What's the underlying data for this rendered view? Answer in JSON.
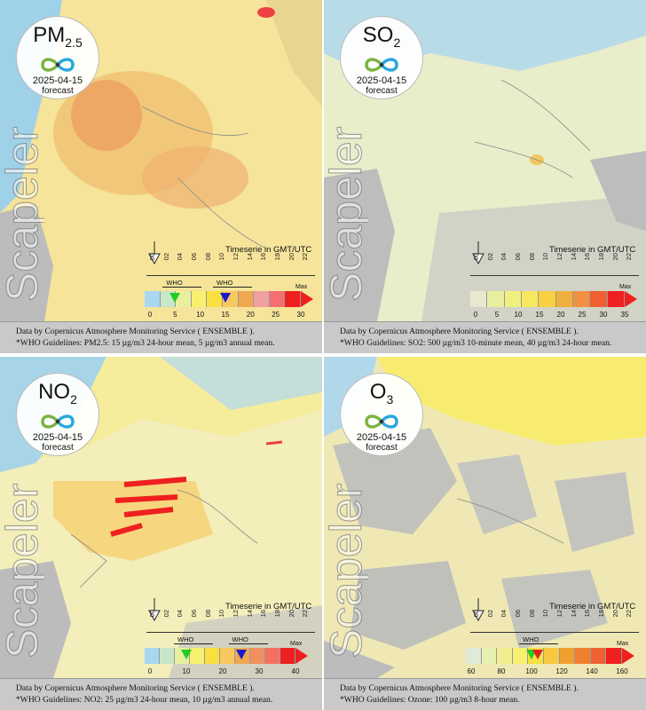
{
  "panels": [
    {
      "id": "pm25",
      "pollutant_main": "PM",
      "pollutant_sub": "2.5",
      "date": "2025-04-15",
      "forecast_label": "forecast",
      "brand": "Scapeler",
      "timeserie_label": "Timeserie in GMT/UTC",
      "hours": [
        "00",
        "02",
        "04",
        "06",
        "08",
        "10",
        "12",
        "14",
        "16",
        "18",
        "20",
        "22"
      ],
      "scale_ticks": [
        "0",
        "5",
        "10",
        "15",
        "20",
        "25",
        "30"
      ],
      "scale_max": "Max",
      "who_labels": [
        "WHO",
        "WHO"
      ],
      "who_marker_values": [
        5,
        15
      ],
      "who_marker_colors": [
        "#22cc22",
        "#1a1acc"
      ],
      "scale_colors": [
        "#a8d8f0",
        "#c8e6c8",
        "#e8f0a0",
        "#f8f070",
        "#f8e040",
        "#f8c860",
        "#f0a850",
        "#f0a0a0",
        "#f47070",
        "#ee2020"
      ],
      "footer_line1": "Data by Copernicus Atmosphere Monitoring Service ( ENSEMBLE ).",
      "footer_line2": "*WHO Guidelines: PM2.5: 15 µg/m3 24-hour mean, 5 µg/m3 annual mean."
    },
    {
      "id": "so2",
      "pollutant_main": "SO",
      "pollutant_sub": "2",
      "date": "2025-04-15",
      "forecast_label": "forecast",
      "brand": "Scapeler",
      "timeserie_label": "Timeserie in GMT/UTC",
      "hours": [
        "00",
        "02",
        "04",
        "06",
        "08",
        "10",
        "12",
        "14",
        "16",
        "18",
        "20",
        "22"
      ],
      "scale_ticks": [
        "0",
        "5",
        "10",
        "15",
        "20",
        "25",
        "30",
        "35"
      ],
      "scale_max": "Max",
      "who_labels": [],
      "who_marker_values": [],
      "who_marker_colors": [],
      "scale_colors": [
        "#e8e8d0",
        "#e8f0a0",
        "#f0f080",
        "#f8e860",
        "#f8d040",
        "#f0b040",
        "#f09040",
        "#f06030",
        "#ee2020"
      ],
      "footer_line1": "Data by Copernicus Atmosphere Monitoring Service ( ENSEMBLE ).",
      "footer_line2": "*WHO Guidelines: SO2: 500 µg/m3 10-minute mean, 40 µg/m3 24-hour mean."
    },
    {
      "id": "no2",
      "pollutant_main": "NO",
      "pollutant_sub": "2",
      "date": "2025-04-15",
      "forecast_label": "forecast",
      "brand": "Scapeler",
      "timeserie_label": "Timeserie in GMT/UTC",
      "hours": [
        "00",
        "02",
        "04",
        "06",
        "08",
        "10",
        "12",
        "14",
        "16",
        "18",
        "20",
        "22"
      ],
      "scale_ticks": [
        "0",
        "10",
        "20",
        "30",
        "40"
      ],
      "scale_max": "Max",
      "who_labels": [
        "WHO",
        "WHO"
      ],
      "who_marker_values": [
        10,
        25
      ],
      "who_marker_colors": [
        "#22cc22",
        "#1a1acc"
      ],
      "scale_colors": [
        "#a8d8f0",
        "#c8e6c8",
        "#e8f0a0",
        "#f8f070",
        "#f8e040",
        "#f8c860",
        "#f0a850",
        "#f09060",
        "#f47060",
        "#ee2020"
      ],
      "footer_line1": "Data by Copernicus Atmosphere Monitoring Service ( ENSEMBLE ).",
      "footer_line2": "*WHO Guidelines: NO2: 25 µg/m3 24-hour mean, 10 µg/m3 annual mean."
    },
    {
      "id": "o3",
      "pollutant_main": "O",
      "pollutant_sub": "3",
      "date": "2025-04-15",
      "forecast_label": "forecast",
      "brand": "Scapeler",
      "timeserie_label": "Timeserie in GMT/UTC",
      "hours": [
        "00",
        "02",
        "04",
        "06",
        "08",
        "10",
        "12",
        "14",
        "16",
        "18",
        "20",
        "22"
      ],
      "scale_ticks": [
        "60",
        "80",
        "100",
        "120",
        "140",
        "160"
      ],
      "scale_max": "Max",
      "who_labels": [
        "WHO"
      ],
      "who_marker_values": [
        100,
        104
      ],
      "who_marker_colors": [
        "#22cc22",
        "#dd2222"
      ],
      "scale_colors": [
        "#e0ead8",
        "#e8f0b0",
        "#f0f090",
        "#f8f070",
        "#f8e040",
        "#f8c840",
        "#f0a030",
        "#f08030",
        "#f06030",
        "#ee2020"
      ],
      "footer_line1": "Data by Copernicus Atmosphere Monitoring Service ( ENSEMBLE ).",
      "footer_line2": "*WHO Guidelines: Ozone: 100 µg/m3 8-hour mean."
    }
  ]
}
